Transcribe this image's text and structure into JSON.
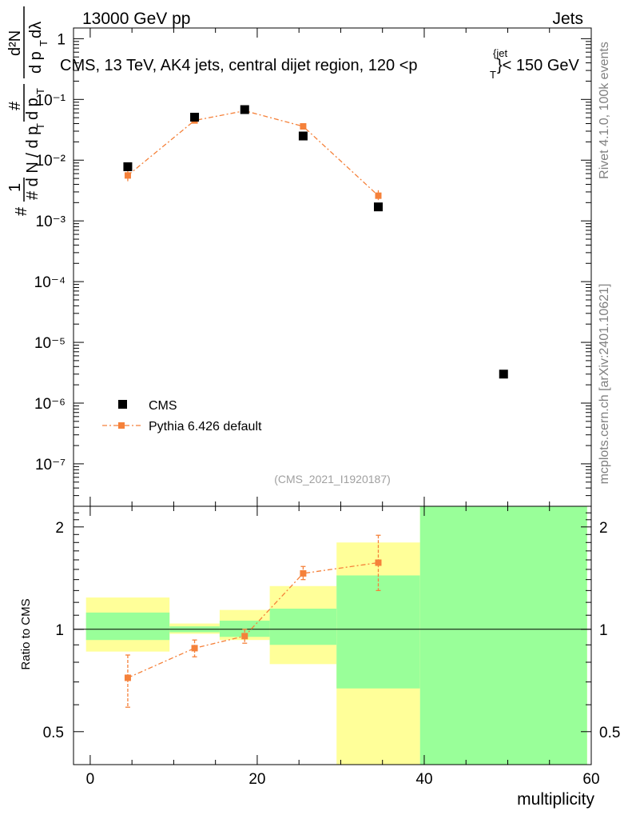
{
  "header": {
    "left": "13000 GeV pp",
    "right": "Jets"
  },
  "plot_title": "CMS, 13 TeV, AK4 jets, central dijet region, 120 <p",
  "plot_title_sup": "{jet",
  "plot_title_sub": "T",
  "plot_title_end": "}< 150 GeV",
  "side_labels": {
    "rivet": "Rivet 4.1.0,  100k events",
    "mcplots": "mcplots.cern.ch [arXiv:2401.10621]"
  },
  "watermark": "(CMS_2021_I1920187)",
  "ylabel_main": {
    "num1": "1",
    "den1": "#",
    "num2": "#",
    "den2": "d p",
    "den2_sub": "T",
    "lhs": "# d N / d p",
    "lhs_sub": "T",
    "num3": "d²N",
    "den3": "d p",
    "den3_sub": "T",
    "den3_tail": " dλ"
  },
  "ylabel_ratio": "Ratio to CMS",
  "xlabel": "multiplicity",
  "legend": [
    {
      "label": "CMS",
      "color": "#000000"
    },
    {
      "label": "Pythia 6.426 default",
      "color": "#f5813a"
    }
  ],
  "colors": {
    "mc": "#f5813a",
    "band_inner": "#99ff99",
    "band_outer": "#ffff99"
  },
  "chart_data": {
    "type": "scatter",
    "xlim": [
      -2,
      60
    ],
    "x_ticks": [
      0,
      20,
      40,
      60
    ],
    "main": {
      "yscale": "log",
      "ylim": [
        2e-08,
        1.5
      ],
      "y_tick_labels": [
        "1",
        "10⁻¹",
        "10⁻²",
        "10⁻³",
        "10⁻⁴",
        "10⁻⁵",
        "10⁻⁶",
        "10⁻⁷"
      ],
      "y_tick_values": [
        1,
        0.1,
        0.01,
        0.001,
        0.0001,
        1e-05,
        1e-06,
        1e-07
      ],
      "series": [
        {
          "name": "CMS",
          "x": [
            4.5,
            12.5,
            18.5,
            25.5,
            34.5,
            49.5
          ],
          "y": [
            0.0078,
            0.051,
            0.068,
            0.025,
            0.0017,
            3e-06
          ]
        },
        {
          "name": "Pythia 6.426 default",
          "x": [
            4.5,
            12.5,
            18.5,
            25.5,
            34.5
          ],
          "y": [
            0.0056,
            0.045,
            0.065,
            0.036,
            0.0026
          ],
          "yerr_lo": [
            0.0011,
            0.0028,
            0.0025,
            0.002,
            0.0004
          ],
          "yerr_hi": [
            0.0011,
            0.0028,
            0.0025,
            0.002,
            0.0006
          ]
        }
      ]
    },
    "ratio": {
      "ylim": [
        0.4,
        2.3
      ],
      "y_ticks": [
        0.5,
        1,
        2
      ],
      "y_tick_labels": [
        "0.5",
        "1",
        "2"
      ],
      "bins": [
        {
          "lo": -0.5,
          "hi": 9.5,
          "inner": [
            0.93,
            1.12
          ],
          "outer": [
            0.86,
            1.24
          ]
        },
        {
          "lo": 9.5,
          "hi": 15.5,
          "inner": [
            0.98,
            1.02
          ],
          "outer": [
            0.97,
            1.04
          ]
        },
        {
          "lo": 15.5,
          "hi": 21.5,
          "inner": [
            0.95,
            1.06
          ],
          "outer": [
            0.93,
            1.14
          ]
        },
        {
          "lo": 21.5,
          "hi": 29.5,
          "inner": [
            0.9,
            1.15
          ],
          "outer": [
            0.79,
            1.34
          ]
        },
        {
          "lo": 29.5,
          "hi": 39.5,
          "inner": [
            0.67,
            1.44
          ],
          "outer": [
            0.4,
            1.8
          ]
        },
        {
          "lo": 39.5,
          "hi": 59.5,
          "inner": [
            0.4,
            2.3
          ],
          "outer": [
            0.4,
            2.3
          ]
        }
      ],
      "points": {
        "x": [
          4.5,
          12.5,
          18.5,
          25.5,
          34.5
        ],
        "y": [
          0.72,
          0.88,
          0.955,
          1.46,
          1.57
        ],
        "err_lo": [
          0.13,
          0.05,
          0.045,
          0.06,
          0.27
        ],
        "err_hi": [
          0.12,
          0.05,
          0.045,
          0.07,
          0.32
        ]
      }
    }
  }
}
